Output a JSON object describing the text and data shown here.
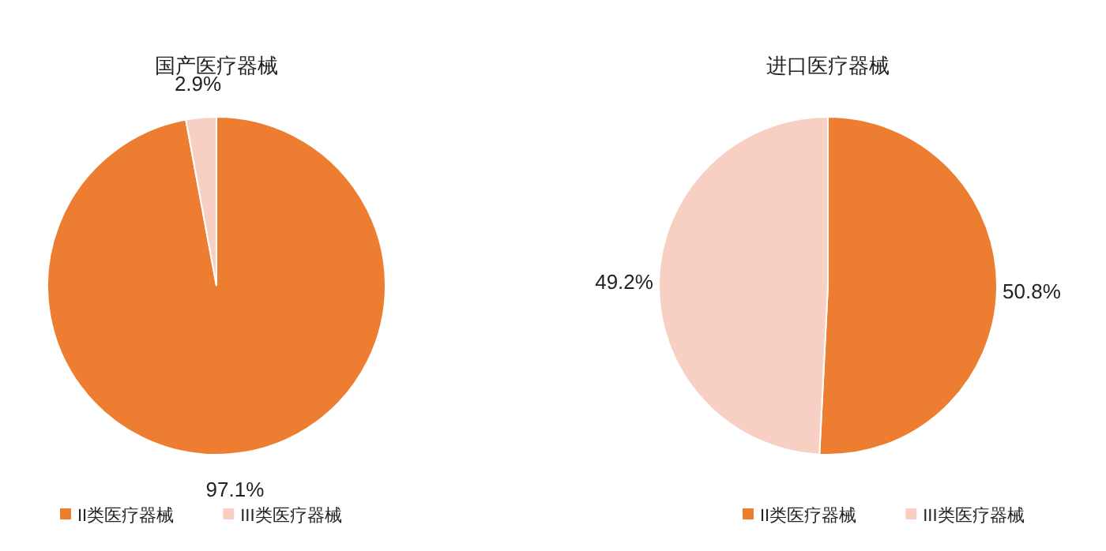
{
  "chart_data": [
    {
      "type": "pie",
      "title": "国产医疗器械",
      "categories": [
        "II类医疗器械",
        "III类医疗器械"
      ],
      "values": [
        97.1,
        2.9
      ],
      "value_labels": [
        "97.1%",
        "2.9%"
      ],
      "colors": [
        "#ed7d31",
        "#f8d0c3"
      ],
      "legend": "bottom"
    },
    {
      "type": "pie",
      "title": "进口医疗器械",
      "categories": [
        "II类医疗器械",
        "III类医疗器械"
      ],
      "values": [
        50.8,
        49.2
      ],
      "value_labels": [
        "50.8%",
        "49.2%"
      ],
      "colors": [
        "#ed7d31",
        "#f8d0c3"
      ],
      "legend": "bottom"
    }
  ]
}
